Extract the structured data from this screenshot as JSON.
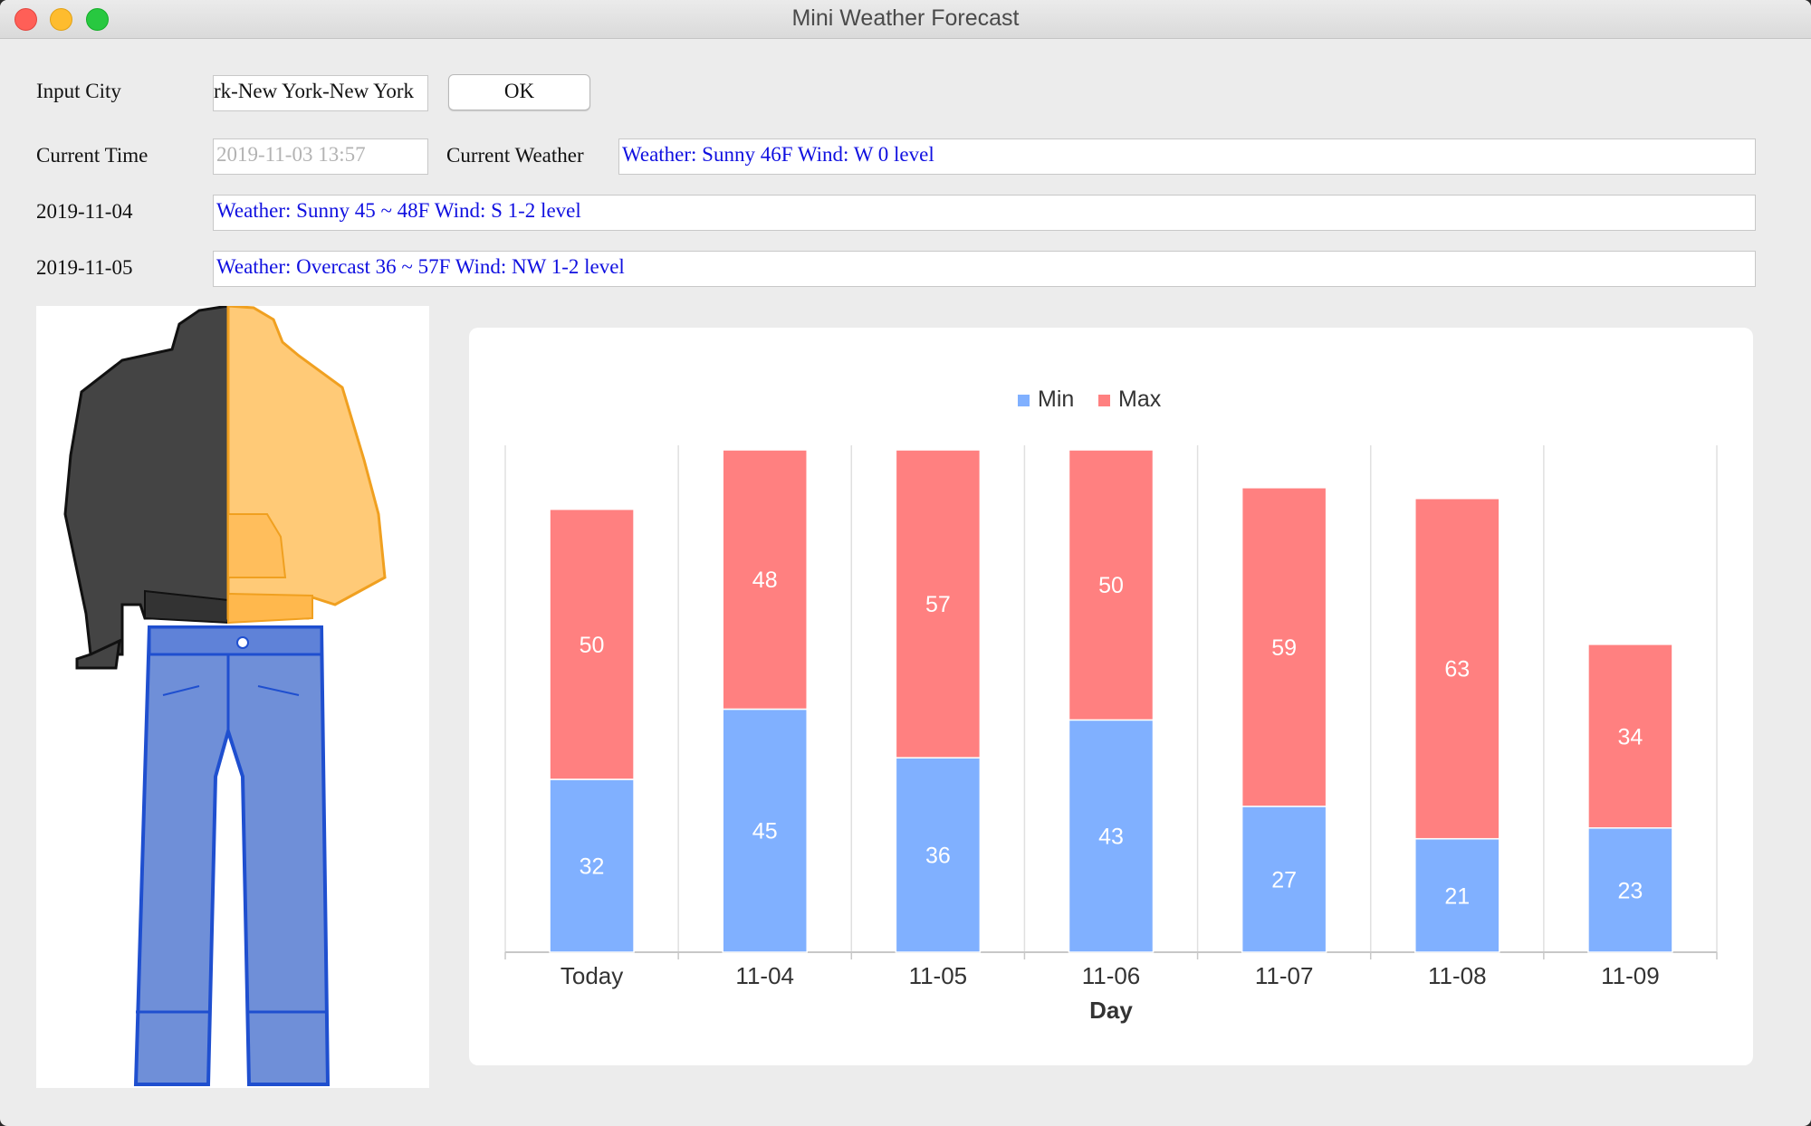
{
  "window": {
    "title": "Mini Weather Forecast"
  },
  "form": {
    "input_city_label": "Input City",
    "city_value": "rk-New York-New York",
    "ok_label": "OK",
    "current_time_label": "Current Time",
    "current_time_value": "2019-11-03 13:57",
    "current_weather_label": "Current Weather",
    "current_weather_value": "Weather: Sunny  46F  Wind: W  0 level",
    "day1_label": "2019-11-04",
    "day1_value": "Weather: Sunny  45 ~ 48F  Wind: S 1-2 level",
    "day2_label": "2019-11-05",
    "day2_value": "Weather: Overcast  36 ~ 57F  Wind: NW 1-2 level"
  },
  "clothing": {
    "icons": [
      "hoodie-icon",
      "jeans-icon"
    ]
  },
  "chart_data": {
    "type": "bar",
    "stacked": true,
    "categories": [
      "Today",
      "11-04",
      "11-05",
      "11-06",
      "11-07",
      "11-08",
      "11-09"
    ],
    "series": [
      {
        "name": "Min",
        "color": "#80b0ff",
        "values": [
          32,
          45,
          36,
          43,
          27,
          21,
          23
        ]
      },
      {
        "name": "Max",
        "color": "#ff8080",
        "values": [
          50,
          48,
          57,
          50,
          59,
          63,
          34
        ]
      }
    ],
    "xlabel": "Day",
    "ylabel": "",
    "ylim": [
      0,
      93
    ],
    "legend": "top-center",
    "grid": "vertical"
  }
}
